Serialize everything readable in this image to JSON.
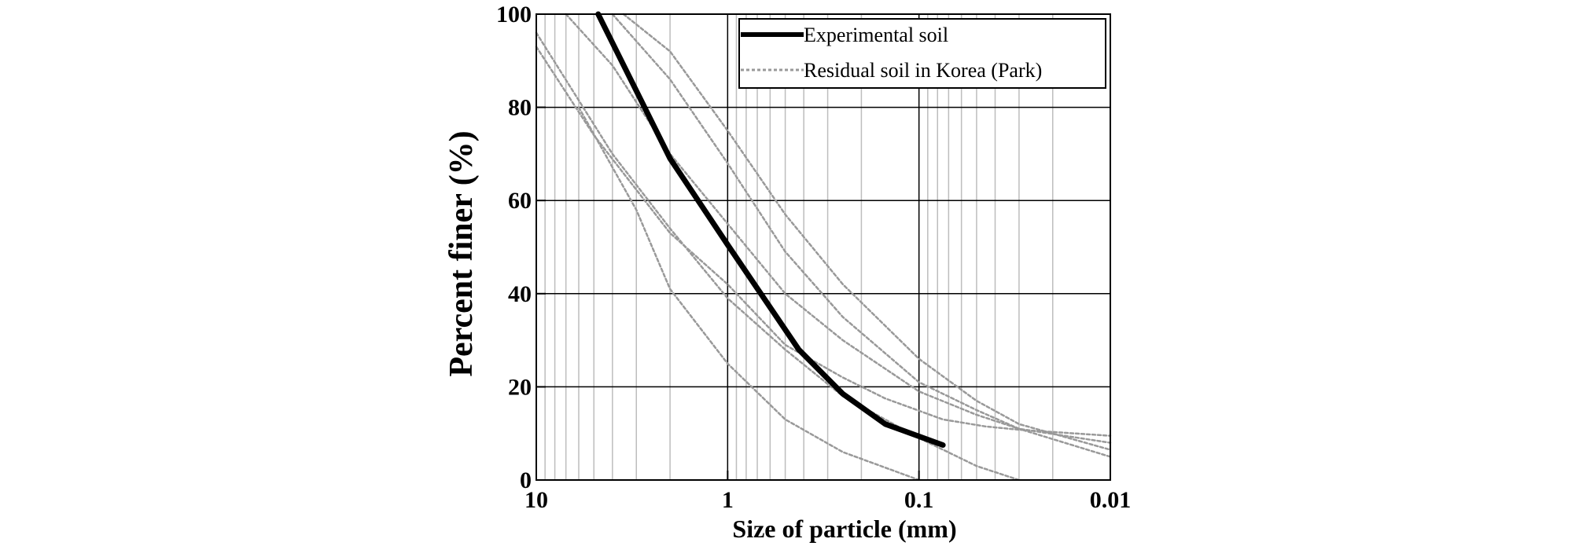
{
  "chart_data": {
    "type": "line",
    "title": "",
    "xlabel": "Size of particle (mm)",
    "ylabel": "Percent finer (%)",
    "x_scale": "log",
    "x_reversed": true,
    "xlim": [
      10,
      0.01
    ],
    "ylim": [
      0,
      100
    ],
    "x_ticks": [
      10,
      1,
      0.1,
      0.01
    ],
    "x_tick_labels": [
      "10",
      "1",
      "0.1",
      "0.01"
    ],
    "y_ticks": [
      0,
      20,
      40,
      60,
      80,
      100
    ],
    "y_tick_labels": [
      "0",
      "20",
      "40",
      "60",
      "80",
      "100"
    ],
    "grid": true,
    "legend_position": "top-right",
    "legend": [
      "Experimental soil",
      "Residual soil in Korea (Park)"
    ],
    "series": [
      {
        "name": "Experimental soil",
        "style": "solid",
        "color": "#000000",
        "points": [
          [
            4.75,
            100
          ],
          [
            2,
            69
          ],
          [
            1,
            50.5
          ],
          [
            0.425,
            28
          ],
          [
            0.25,
            18.5
          ],
          [
            0.15,
            12
          ],
          [
            0.075,
            7.5
          ]
        ]
      },
      {
        "name": "Residual soil in Korea (Park)",
        "style": "dotted",
        "color": "#999999",
        "points": [
          [
            10,
            93
          ],
          [
            5,
            74
          ],
          [
            2,
            53
          ],
          [
            1,
            42
          ],
          [
            0.5,
            29
          ],
          [
            0.25,
            22
          ],
          [
            0.15,
            17.5
          ],
          [
            0.075,
            13
          ],
          [
            0.045,
            11.5
          ],
          [
            0.03,
            10.8
          ],
          [
            0.01,
            9.5
          ]
        ]
      },
      {
        "name": "Residual soil in Korea (Park)",
        "style": "dotted",
        "color": "#999999",
        "points": [
          [
            3.5,
            100
          ],
          [
            2,
            92
          ],
          [
            1,
            75
          ],
          [
            0.5,
            57
          ],
          [
            0.25,
            42
          ],
          [
            0.1,
            26
          ],
          [
            0.05,
            17
          ],
          [
            0.03,
            12
          ],
          [
            0.01,
            6.5
          ]
        ]
      },
      {
        "name": "Residual soil in Korea (Park)",
        "style": "dotted",
        "color": "#999999",
        "points": [
          [
            4,
            100
          ],
          [
            2,
            86
          ],
          [
            1,
            68
          ],
          [
            0.5,
            49
          ],
          [
            0.25,
            35
          ],
          [
            0.1,
            21
          ],
          [
            0.05,
            15
          ],
          [
            0.03,
            11
          ],
          [
            0.01,
            8
          ]
        ]
      },
      {
        "name": "Residual soil in Korea (Park)",
        "style": "dotted",
        "color": "#999999",
        "points": [
          [
            7,
            100
          ],
          [
            4,
            89
          ],
          [
            2,
            70
          ],
          [
            1,
            55
          ],
          [
            0.5,
            40
          ],
          [
            0.25,
            30
          ],
          [
            0.1,
            19
          ],
          [
            0.05,
            14
          ],
          [
            0.03,
            11
          ],
          [
            0.01,
            5
          ]
        ]
      },
      {
        "name": "Residual soil in Korea (Park)",
        "style": "dotted",
        "color": "#999999",
        "points": [
          [
            10,
            96
          ],
          [
            4,
            70
          ],
          [
            2,
            54
          ],
          [
            1,
            39
          ],
          [
            0.5,
            28
          ],
          [
            0.25,
            18
          ],
          [
            0.1,
            9
          ],
          [
            0.05,
            3
          ],
          [
            0.03,
            0
          ]
        ]
      },
      {
        "name": "Residual soil in Korea (Park)",
        "style": "dotted",
        "color": "#999999",
        "points": [
          [
            6,
            80
          ],
          [
            3,
            58
          ],
          [
            2,
            41
          ],
          [
            1,
            25
          ],
          [
            0.5,
            13
          ],
          [
            0.25,
            6
          ],
          [
            0.1,
            0
          ]
        ]
      }
    ]
  }
}
